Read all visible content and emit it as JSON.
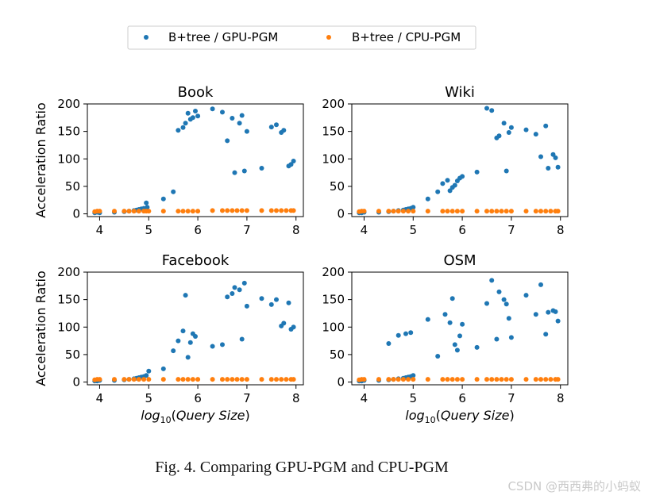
{
  "legend": {
    "items": [
      {
        "label": "B+tree / GPU-PGM",
        "color": "#1f77b4"
      },
      {
        "label": "B+tree / CPU-PGM",
        "color": "#ff7f0e"
      }
    ]
  },
  "caption": "Fig. 4.   Comparing GPU-PGM and CPU-PGM",
  "watermark": "CSDN @西西弗的小蚂蚁",
  "chart_data": [
    {
      "type": "scatter",
      "title": "Book",
      "ylabel": "Acceleration Ratio",
      "xlabel": "",
      "xlim": [
        3.75,
        8.15
      ],
      "ylim": [
        -5,
        200
      ],
      "xticks": [
        4,
        5,
        6,
        7,
        8
      ],
      "yticks": [
        0,
        50,
        100,
        150,
        200
      ],
      "series": [
        {
          "name": "B+tree / GPU-PGM",
          "color": "#1f77b4",
          "x": [
            3.9,
            3.95,
            4.0,
            4.3,
            4.5,
            4.6,
            4.7,
            4.75,
            4.8,
            4.85,
            4.9,
            4.95,
            4.97,
            5.3,
            5.5,
            5.6,
            5.7,
            5.75,
            5.8,
            5.85,
            5.9,
            5.95,
            6.0,
            6.3,
            6.5,
            6.6,
            6.7,
            6.75,
            6.85,
            6.9,
            6.95,
            7.0,
            7.3,
            7.5,
            7.6,
            7.7,
            7.75,
            7.85,
            7.9,
            7.95
          ],
          "y": [
            2,
            3,
            2,
            3,
            4,
            5,
            6,
            7,
            8,
            9,
            10,
            20,
            12,
            27,
            40,
            152,
            157,
            165,
            183,
            172,
            175,
            187,
            178,
            191,
            185,
            133,
            174,
            75,
            165,
            179,
            78,
            150,
            83,
            158,
            162,
            148,
            152,
            87,
            90,
            96
          ]
        },
        {
          "name": "B+tree / CPU-PGM",
          "color": "#ff7f0e",
          "x": [
            3.9,
            3.95,
            4.0,
            4.3,
            4.5,
            4.6,
            4.7,
            4.8,
            4.9,
            4.95,
            5.0,
            5.3,
            5.6,
            5.7,
            5.8,
            5.9,
            6.0,
            6.3,
            6.5,
            6.6,
            6.7,
            6.8,
            6.9,
            7.0,
            7.3,
            7.5,
            7.6,
            7.7,
            7.8,
            7.9,
            7.95
          ],
          "y": [
            4,
            5,
            5,
            5,
            5,
            5,
            5,
            5,
            5,
            5,
            5,
            5,
            5,
            5,
            5,
            5,
            5,
            6,
            6,
            6,
            6,
            6,
            6,
            6,
            6,
            6,
            6,
            6,
            6,
            6,
            6
          ]
        }
      ]
    },
    {
      "type": "scatter",
      "title": "Wiki",
      "ylabel": "",
      "xlabel": "",
      "xlim": [
        3.75,
        8.15
      ],
      "ylim": [
        -5,
        200
      ],
      "xticks": [
        4,
        5,
        6,
        7,
        8
      ],
      "yticks": [
        0,
        50,
        100,
        150,
        200
      ],
      "series": [
        {
          "name": "B+tree / GPU-PGM",
          "color": "#1f77b4",
          "x": [
            3.9,
            3.95,
            4.0,
            4.3,
            4.5,
            4.6,
            4.7,
            4.8,
            4.85,
            4.9,
            4.95,
            5.0,
            5.3,
            5.5,
            5.6,
            5.7,
            5.75,
            5.8,
            5.85,
            5.9,
            5.95,
            6.0,
            6.3,
            6.5,
            6.6,
            6.7,
            6.75,
            6.85,
            6.9,
            6.95,
            7.0,
            7.3,
            7.5,
            7.6,
            7.7,
            7.75,
            7.85,
            7.9,
            7.95
          ],
          "y": [
            2,
            2,
            3,
            3,
            4,
            5,
            6,
            7,
            8,
            9,
            10,
            12,
            27,
            40,
            55,
            61,
            42,
            48,
            52,
            60,
            65,
            68,
            76,
            192,
            188,
            138,
            142,
            165,
            78,
            148,
            157,
            153,
            145,
            104,
            160,
            83,
            108,
            102,
            85
          ]
        },
        {
          "name": "B+tree / CPU-PGM",
          "color": "#ff7f0e",
          "x": [
            3.9,
            3.95,
            4.0,
            4.3,
            4.5,
            4.6,
            4.7,
            4.8,
            4.9,
            5.0,
            5.3,
            5.6,
            5.7,
            5.8,
            5.9,
            6.0,
            6.3,
            6.5,
            6.6,
            6.7,
            6.8,
            6.9,
            7.0,
            7.3,
            7.5,
            7.6,
            7.7,
            7.8,
            7.9,
            7.95
          ],
          "y": [
            4,
            5,
            5,
            5,
            5,
            5,
            5,
            5,
            5,
            5,
            5,
            5,
            5,
            5,
            5,
            5,
            5,
            5,
            5,
            5,
            5,
            5,
            5,
            5,
            5,
            5,
            5,
            5,
            5,
            5
          ]
        }
      ]
    },
    {
      "type": "scatter",
      "title": "Facebook",
      "ylabel": "Acceleration Ratio",
      "xlabel": "log10(Query Size)",
      "xlim": [
        3.75,
        8.15
      ],
      "ylim": [
        -5,
        200
      ],
      "xticks": [
        4,
        5,
        6,
        7,
        8
      ],
      "yticks": [
        0,
        50,
        100,
        150,
        200
      ],
      "series": [
        {
          "name": "B+tree / GPU-PGM",
          "color": "#1f77b4",
          "x": [
            3.9,
            3.95,
            4.0,
            4.3,
            4.5,
            4.6,
            4.7,
            4.75,
            4.8,
            4.85,
            4.9,
            4.95,
            5.0,
            5.3,
            5.5,
            5.6,
            5.7,
            5.75,
            5.8,
            5.85,
            5.9,
            5.95,
            6.3,
            6.5,
            6.6,
            6.7,
            6.75,
            6.85,
            6.9,
            6.95,
            7.0,
            7.3,
            7.5,
            7.6,
            7.7,
            7.75,
            7.85,
            7.9,
            7.95
          ],
          "y": [
            2,
            2,
            3,
            3,
            4,
            5,
            6,
            7,
            8,
            9,
            10,
            12,
            20,
            24,
            57,
            75,
            93,
            158,
            45,
            72,
            88,
            83,
            65,
            68,
            155,
            161,
            172,
            168,
            78,
            180,
            138,
            152,
            141,
            150,
            102,
            107,
            144,
            96,
            100
          ]
        },
        {
          "name": "B+tree / CPU-PGM",
          "color": "#ff7f0e",
          "x": [
            3.9,
            3.95,
            4.0,
            4.3,
            4.5,
            4.6,
            4.7,
            4.8,
            4.9,
            5.0,
            5.3,
            5.6,
            5.7,
            5.8,
            5.9,
            6.0,
            6.3,
            6.5,
            6.6,
            6.7,
            6.8,
            6.9,
            7.0,
            7.3,
            7.5,
            7.6,
            7.7,
            7.8,
            7.9,
            7.95
          ],
          "y": [
            4,
            5,
            5,
            5,
            5,
            5,
            5,
            5,
            5,
            5,
            5,
            5,
            5,
            5,
            5,
            5,
            5,
            5,
            5,
            5,
            5,
            5,
            5,
            5,
            5,
            5,
            5,
            5,
            5,
            5
          ]
        }
      ]
    },
    {
      "type": "scatter",
      "title": "OSM",
      "ylabel": "",
      "xlabel": "log10(Query Size)",
      "xlim": [
        3.75,
        8.15
      ],
      "ylim": [
        -5,
        200
      ],
      "xticks": [
        4,
        5,
        6,
        7,
        8
      ],
      "yticks": [
        0,
        50,
        100,
        150,
        200
      ],
      "series": [
        {
          "name": "B+tree / GPU-PGM",
          "color": "#1f77b4",
          "x": [
            3.9,
            3.95,
            4.0,
            4.3,
            4.5,
            4.6,
            4.7,
            4.8,
            4.85,
            4.9,
            4.95,
            5.0,
            4.5,
            4.7,
            4.85,
            4.95,
            5.3,
            5.5,
            5.65,
            5.75,
            5.8,
            5.85,
            5.9,
            5.95,
            6.0,
            6.3,
            6.5,
            6.6,
            6.7,
            6.75,
            6.85,
            6.9,
            6.95,
            7.0,
            7.3,
            7.5,
            7.6,
            7.7,
            7.75,
            7.85,
            7.9,
            7.95
          ],
          "y": [
            2,
            2,
            3,
            3,
            4,
            5,
            6,
            7,
            8,
            9,
            10,
            12,
            70,
            85,
            88,
            90,
            114,
            47,
            123,
            108,
            152,
            68,
            58,
            84,
            105,
            63,
            143,
            185,
            78,
            164,
            150,
            142,
            116,
            81,
            158,
            123,
            177,
            87,
            127,
            130,
            128,
            111
          ]
        },
        {
          "name": "B+tree / CPU-PGM",
          "color": "#ff7f0e",
          "x": [
            3.9,
            3.95,
            4.0,
            4.3,
            4.5,
            4.6,
            4.7,
            4.8,
            4.9,
            5.0,
            5.3,
            5.6,
            5.7,
            5.8,
            5.9,
            6.0,
            6.3,
            6.5,
            6.6,
            6.7,
            6.8,
            6.9,
            7.0,
            7.3,
            7.5,
            7.6,
            7.7,
            7.8,
            7.9,
            7.95
          ],
          "y": [
            4,
            5,
            5,
            5,
            5,
            5,
            5,
            5,
            5,
            5,
            5,
            5,
            5,
            5,
            5,
            5,
            5,
            5,
            5,
            5,
            5,
            5,
            5,
            5,
            5,
            5,
            5,
            5,
            5,
            5
          ]
        }
      ]
    }
  ]
}
